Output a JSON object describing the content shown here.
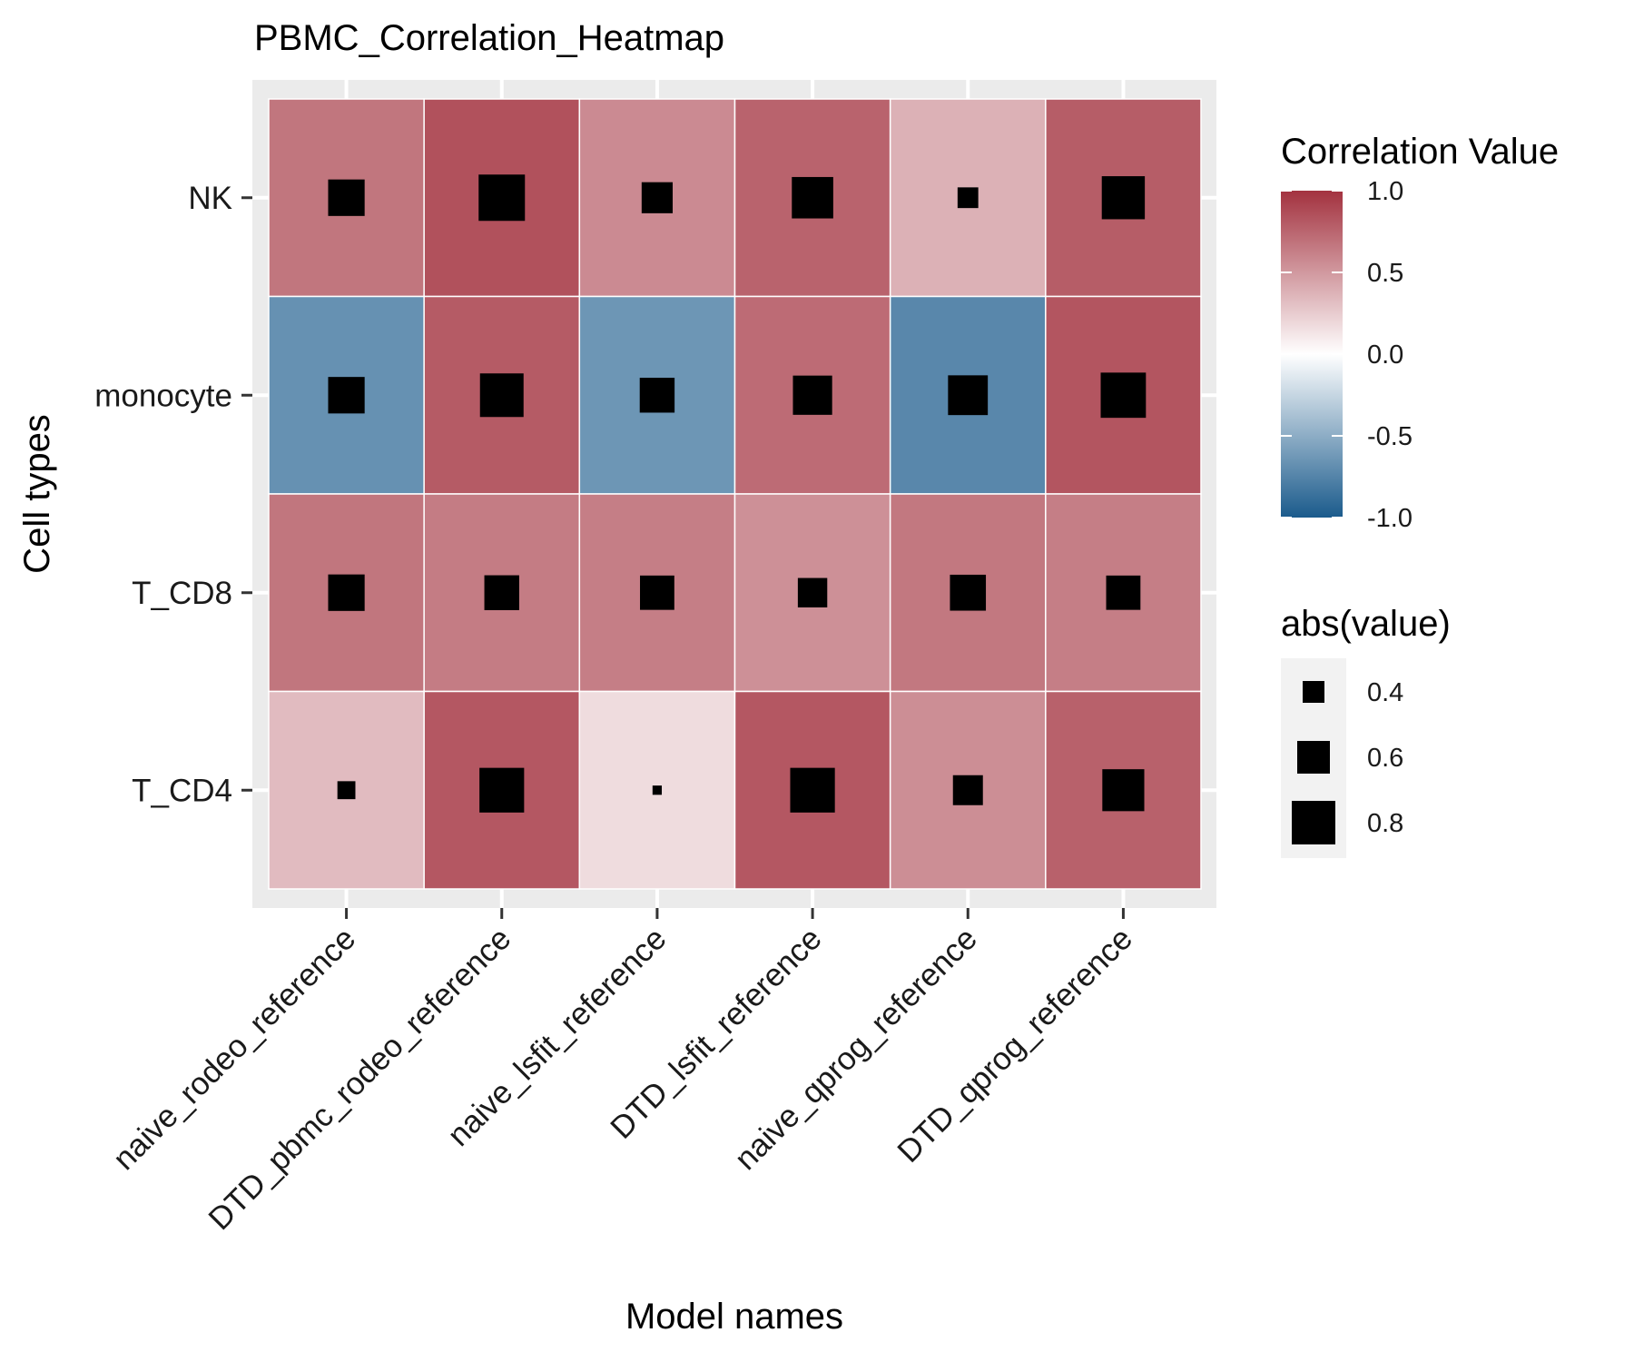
{
  "chart_data": {
    "type": "heatmap",
    "title": "PBMC_Correlation_Heatmap",
    "xlabel": "Model names",
    "ylabel": "Cell types",
    "x_categories": [
      "naive_rodeo_reference",
      "DTD_pbmc_rodeo_reference",
      "naive_lsfit_reference",
      "DTD_lsfit_reference",
      "naive_qprog_reference",
      "DTD_qprog_reference"
    ],
    "y_categories": [
      "NK",
      "monocyte",
      "T_CD8",
      "T_CD4"
    ],
    "values": [
      [
        0.67,
        0.85,
        0.57,
        0.76,
        0.38,
        0.79
      ],
      [
        -0.67,
        0.8,
        -0.64,
        0.72,
        -0.73,
        0.83
      ],
      [
        0.67,
        0.64,
        0.63,
        0.54,
        0.66,
        0.63
      ],
      [
        0.33,
        0.82,
        0.17,
        0.82,
        0.55,
        0.77
      ]
    ],
    "fill_legend": {
      "title": "Correlation Value",
      "ticks": [
        1.0,
        0.5,
        0.0,
        -0.5,
        -1.0
      ],
      "tick_labels": [
        "1.0",
        "0.5",
        "0.0",
        "-0.5",
        "-1.0"
      ],
      "limits": [
        -1,
        1
      ],
      "low_color": "#1b5b8c",
      "mid_color": "#ffffff",
      "high_color": "#a3323f"
    },
    "size_legend": {
      "title": "abs(value)",
      "values": [
        0.4,
        0.6,
        0.8
      ],
      "labels": [
        "0.4",
        "0.6",
        "0.8"
      ]
    },
    "marker_color": "#000000",
    "panel_background": "#ebebeb",
    "grid": true,
    "legend_position": "right"
  }
}
